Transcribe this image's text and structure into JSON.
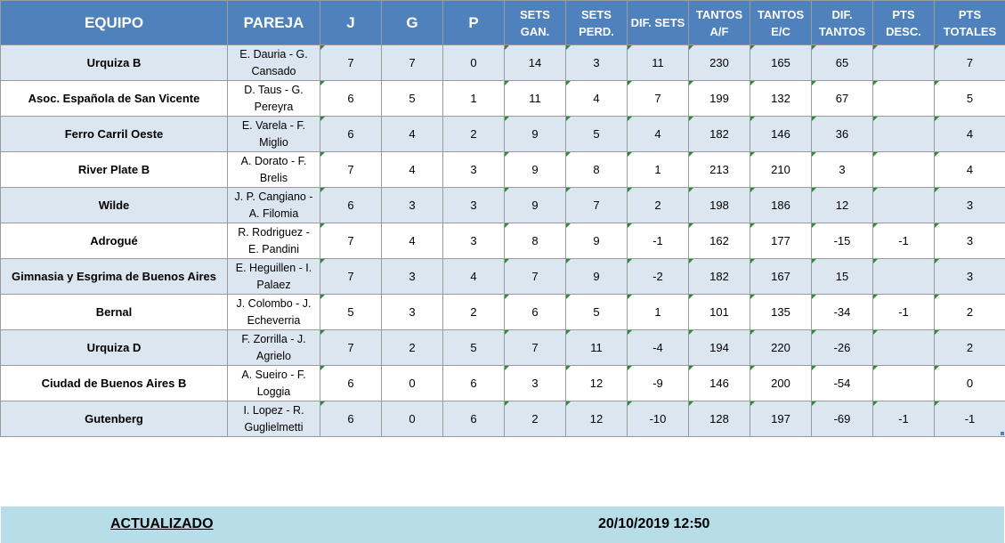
{
  "headers": [
    "EQUIPO",
    "PAREJA",
    "J",
    "G",
    "P",
    "SETS GAN.",
    "SETS PERD.",
    "DIF. SETS",
    "TANTOS A/F",
    "TANTOS E/C",
    "DIF. TANTOS",
    "PTS DESC.",
    "PTS TOTALES"
  ],
  "rows": [
    {
      "team": "Urquiza B",
      "pair": "E. Dauria - G. Cansado",
      "j": "7",
      "g": "7",
      "p": "0",
      "sg": "14",
      "sp": "3",
      "ds": "11",
      "taf": "230",
      "tec": "165",
      "dt": "65",
      "desc": "",
      "pts": "7"
    },
    {
      "team": "Asoc. Española de San Vicente",
      "pair": "D. Taus - G. Pereyra",
      "j": "6",
      "g": "5",
      "p": "1",
      "sg": "11",
      "sp": "4",
      "ds": "7",
      "taf": "199",
      "tec": "132",
      "dt": "67",
      "desc": "",
      "pts": "5"
    },
    {
      "team": "Ferro Carril Oeste",
      "pair": "E. Varela - F. Miglio",
      "j": "6",
      "g": "4",
      "p": "2",
      "sg": "9",
      "sp": "5",
      "ds": "4",
      "taf": "182",
      "tec": "146",
      "dt": "36",
      "desc": "",
      "pts": "4"
    },
    {
      "team": "River Plate B",
      "pair": "A. Dorato - F. Brelis",
      "j": "7",
      "g": "4",
      "p": "3",
      "sg": "9",
      "sp": "8",
      "ds": "1",
      "taf": "213",
      "tec": "210",
      "dt": "3",
      "desc": "",
      "pts": "4"
    },
    {
      "team": "Wilde",
      "pair": "J. P. Cangiano - A. Filomia",
      "j": "6",
      "g": "3",
      "p": "3",
      "sg": "9",
      "sp": "7",
      "ds": "2",
      "taf": "198",
      "tec": "186",
      "dt": "12",
      "desc": "",
      "pts": "3"
    },
    {
      "team": "Adrogué",
      "pair": "R. Rodriguez - E. Pandini",
      "j": "7",
      "g": "4",
      "p": "3",
      "sg": "8",
      "sp": "9",
      "ds": "-1",
      "taf": "162",
      "tec": "177",
      "dt": "-15",
      "desc": "-1",
      "pts": "3"
    },
    {
      "team": "Gimnasia y Esgrima de Buenos Aires",
      "pair": "E. Heguillen - I. Palaez",
      "j": "7",
      "g": "3",
      "p": "4",
      "sg": "7",
      "sp": "9",
      "ds": "-2",
      "taf": "182",
      "tec": "167",
      "dt": "15",
      "desc": "",
      "pts": "3"
    },
    {
      "team": "Bernal",
      "pair": "J. Colombo - J. Echeverria",
      "j": "5",
      "g": "3",
      "p": "2",
      "sg": "6",
      "sp": "5",
      "ds": "1",
      "taf": "101",
      "tec": "135",
      "dt": "-34",
      "desc": "-1",
      "pts": "2"
    },
    {
      "team": "Urquiza D",
      "pair": "F. Zorrilla - J. Agrielo",
      "j": "7",
      "g": "2",
      "p": "5",
      "sg": "7",
      "sp": "11",
      "ds": "-4",
      "taf": "194",
      "tec": "220",
      "dt": "-26",
      "desc": "",
      "pts": "2"
    },
    {
      "team": "Ciudad de Buenos Aires B",
      "pair": "A. Sueiro - F. Loggia",
      "j": "6",
      "g": "0",
      "p": "6",
      "sg": "3",
      "sp": "12",
      "ds": "-9",
      "taf": "146",
      "tec": "200",
      "dt": "-54",
      "desc": "",
      "pts": "0"
    },
    {
      "team": "Gutenberg",
      "pair": "I. Lopez - R. Guglielmetti",
      "j": "6",
      "g": "0",
      "p": "6",
      "sg": "2",
      "sp": "12",
      "ds": "-10",
      "taf": "128",
      "tec": "197",
      "dt": "-69",
      "desc": "-1",
      "pts": "-1"
    }
  ],
  "footer": {
    "label": "ACTUALIZADO",
    "datetime": "20/10/2019 12:50"
  }
}
